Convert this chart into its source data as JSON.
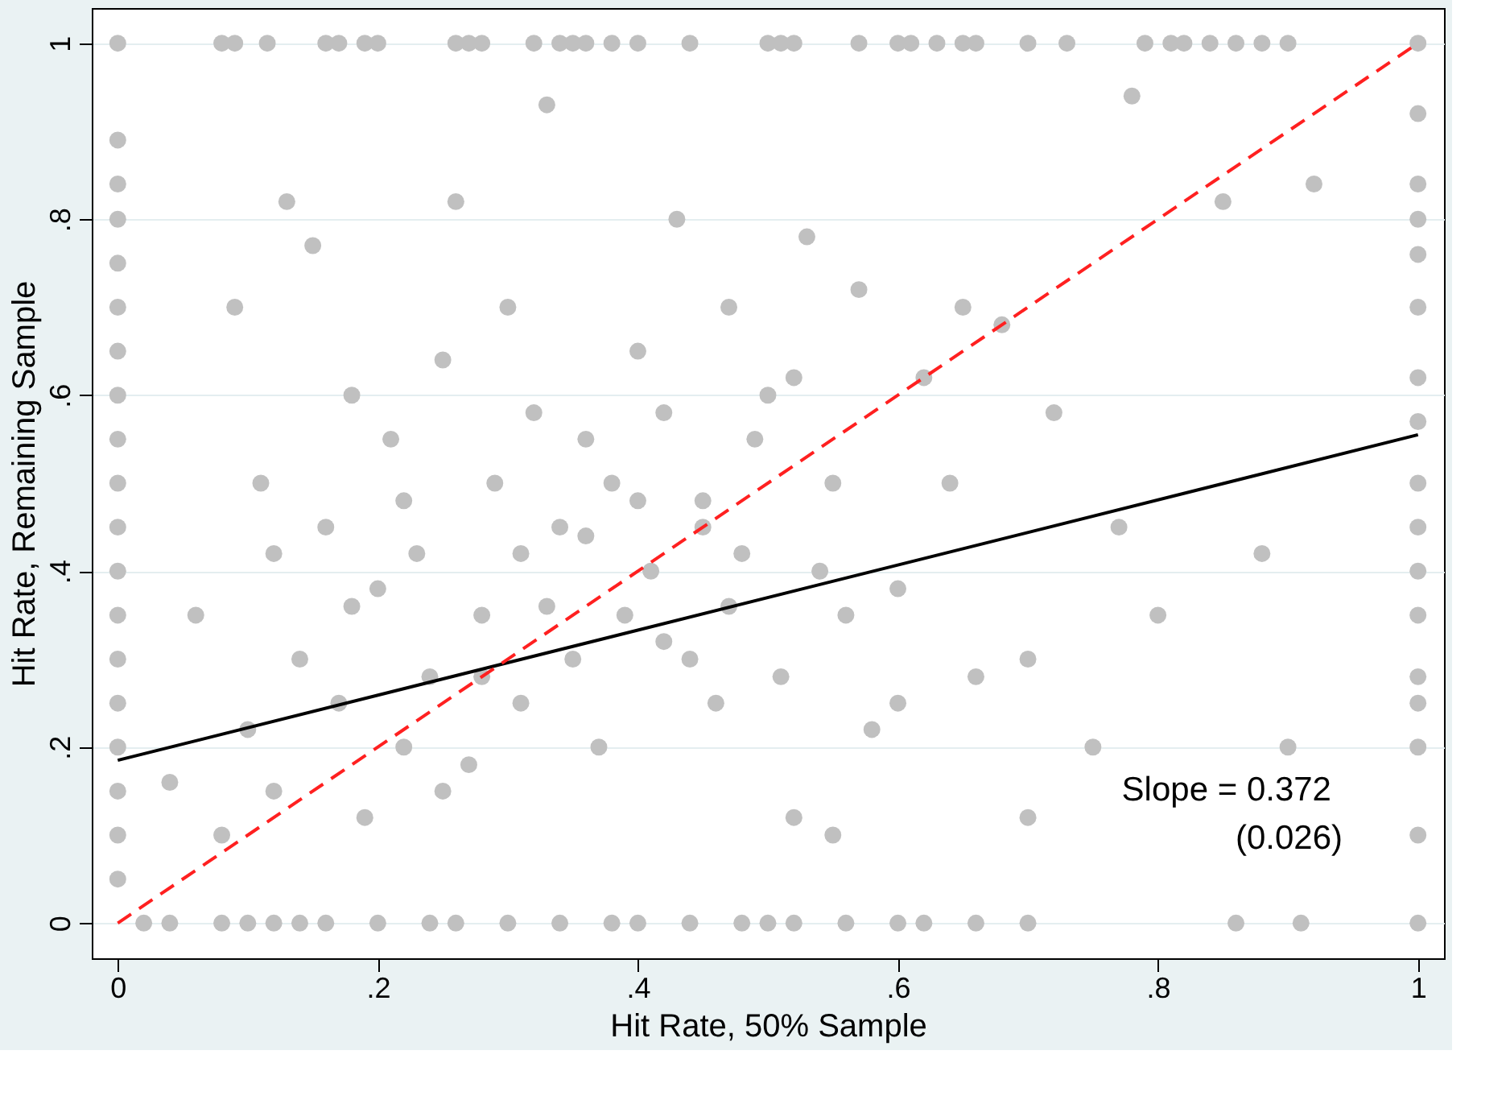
{
  "chart_data": {
    "type": "scatter",
    "xlabel": "Hit Rate, 50% Sample",
    "ylabel": "Hit Rate, Remaining Sample",
    "xlim": [
      -0.02,
      1.02
    ],
    "ylim": [
      -0.04,
      1.04
    ],
    "xticks": [
      0,
      {
        "value": 0.2,
        "label": ".2"
      },
      {
        "value": 0.4,
        "label": ".4"
      },
      {
        "value": 0.6,
        "label": ".6"
      },
      {
        "value": 0.8,
        "label": ".8"
      },
      1
    ],
    "yticks": [
      0,
      {
        "value": 0.2,
        "label": ".2"
      },
      {
        "value": 0.4,
        "label": ".4"
      },
      {
        "value": 0.6,
        "label": ".6"
      },
      {
        "value": 0.8,
        "label": ".8"
      },
      1
    ],
    "grid": "y",
    "annotations": [
      "Slope =  0.372",
      "(0.026)"
    ],
    "series": [
      {
        "color": "#c0c0c0",
        "marker": "circle",
        "x": [
          0,
          0.08,
          0.09,
          0.115,
          0.16,
          0.17,
          0.19,
          0.2,
          0.26,
          0.27,
          0.28,
          0.32,
          0.34,
          0.35,
          0.36,
          0.38,
          0.4,
          0.44,
          0.5,
          0.51,
          0.52,
          0.57,
          0.6,
          0.61,
          0.63,
          0.65,
          0.66,
          0.7,
          0.73,
          0.79,
          0.81,
          0.82,
          0.84,
          0.86,
          0.88,
          0.9,
          1,
          0.02,
          0.04,
          0.08,
          0.1,
          0.12,
          0.14,
          0.16,
          0.2,
          0.24,
          0.26,
          0.3,
          0.34,
          0.38,
          0.4,
          0.44,
          0.48,
          0.5,
          0.52,
          0.56,
          0.6,
          0.62,
          0.66,
          0.7,
          0.86,
          0.91,
          1,
          0,
          0,
          0,
          0,
          0,
          0,
          0,
          0,
          0,
          0,
          0,
          0,
          0,
          0,
          0,
          0,
          0,
          0,
          1,
          1,
          1,
          1,
          1,
          1,
          1,
          1,
          1,
          1,
          1,
          1,
          1,
          1,
          1,
          0.04,
          0.06,
          0.08,
          0.09,
          0.1,
          0.11,
          0.12,
          0.13,
          0.14,
          0.15,
          0.16,
          0.17,
          0.18,
          0.19,
          0.2,
          0.21,
          0.22,
          0.23,
          0.24,
          0.25,
          0.26,
          0.27,
          0.28,
          0.29,
          0.3,
          0.31,
          0.32,
          0.33,
          0.34,
          0.35,
          0.36,
          0.37,
          0.38,
          0.39,
          0.4,
          0.41,
          0.42,
          0.43,
          0.44,
          0.45,
          0.46,
          0.47,
          0.48,
          0.49,
          0.5,
          0.51,
          0.52,
          0.53,
          0.54,
          0.55,
          0.56,
          0.57,
          0.58,
          0.6,
          0.62,
          0.64,
          0.66,
          0.68,
          0.7,
          0.72,
          0.75,
          0.77,
          0.8,
          0.85,
          0.88,
          0.9,
          0.92,
          0.25,
          0.31,
          0.4,
          0.47,
          0.55,
          0.65,
          0.78,
          0.12,
          0.22,
          0.33,
          0.45,
          0.52,
          0.6,
          0.7,
          0.18,
          0.28,
          0.36,
          0.42
        ],
        "values": [
          1,
          1,
          1,
          1,
          1,
          1,
          1,
          1,
          1,
          1,
          1,
          1,
          1,
          1,
          1,
          1,
          1,
          1,
          1,
          1,
          1,
          1,
          1,
          1,
          1,
          1,
          1,
          1,
          1,
          1,
          1,
          1,
          1,
          1,
          1,
          1,
          1,
          0,
          0,
          0,
          0,
          0,
          0,
          0,
          0,
          0,
          0,
          0,
          0,
          0,
          0,
          0,
          0,
          0,
          0,
          0,
          0,
          0,
          0,
          0,
          0,
          0,
          0,
          0.89,
          0.84,
          0.8,
          0.75,
          0.7,
          0.65,
          0.6,
          0.55,
          0.5,
          0.45,
          0.4,
          0.35,
          0.3,
          0.25,
          0.2,
          0.15,
          0.1,
          0.05,
          0.92,
          0.84,
          0.8,
          0.76,
          0.7,
          0.62,
          0.57,
          0.5,
          0.45,
          0.4,
          0.35,
          0.28,
          0.25,
          0.2,
          0.1,
          0.16,
          0.35,
          0.1,
          0.7,
          0.22,
          0.5,
          0.15,
          0.82,
          0.3,
          0.77,
          0.45,
          0.25,
          0.6,
          0.12,
          0.38,
          0.55,
          0.2,
          0.42,
          0.28,
          0.64,
          0.82,
          0.18,
          0.35,
          0.5,
          0.7,
          0.25,
          0.58,
          0.93,
          0.45,
          0.3,
          0.55,
          0.2,
          0.5,
          0.35,
          0.65,
          0.4,
          0.58,
          0.8,
          0.3,
          0.48,
          0.25,
          0.7,
          0.42,
          0.55,
          0.6,
          0.28,
          0.62,
          0.78,
          0.4,
          0.5,
          0.35,
          0.72,
          0.22,
          0.38,
          0.62,
          0.5,
          0.28,
          0.68,
          0.3,
          0.58,
          0.2,
          0.45,
          0.35,
          0.82,
          0.42,
          0.2,
          0.84,
          0.15,
          0.42,
          0.48,
          0.36,
          0.1,
          0.7,
          0.94,
          0.42,
          0.48,
          0.36,
          0.45,
          0.12,
          0.25,
          0.12,
          0.36,
          0.28,
          0.44,
          0.32
        ]
      },
      {
        "type": "line",
        "color": "#000000",
        "line_style": "solid",
        "x": [
          0,
          1
        ],
        "values": [
          0.185,
          0.555
        ]
      },
      {
        "type": "line",
        "color": "#ff2020",
        "line_style": "dashed",
        "x": [
          0,
          1
        ],
        "values": [
          0,
          1
        ]
      }
    ]
  }
}
